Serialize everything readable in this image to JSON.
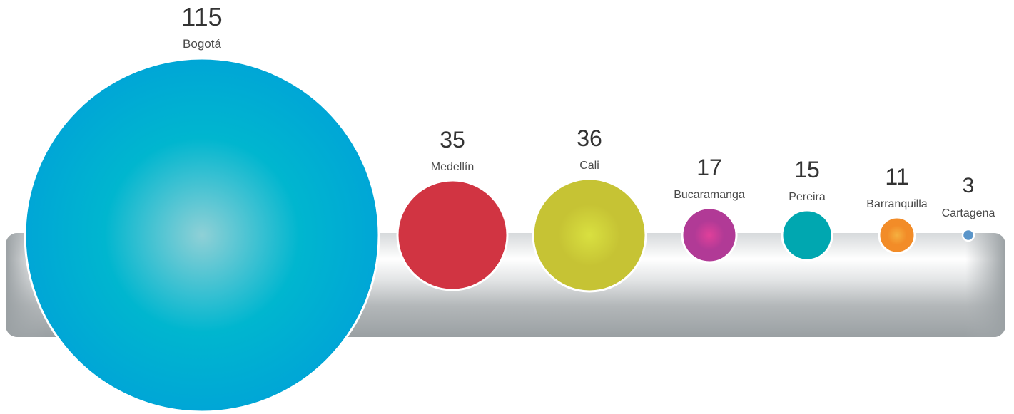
{
  "chart_data": {
    "type": "bubble",
    "title": "",
    "categories": [
      "Bogotá",
      "Medellín",
      "Cali",
      "Bucaramanga",
      "Pereira",
      "Barranquilla",
      "Cartagena"
    ],
    "values": [
      115,
      35,
      36,
      17,
      15,
      11,
      3
    ],
    "colors": [
      "#00a6d6",
      "#d13442",
      "#c6c334",
      "#b13a96",
      "#00a7b0",
      "#f28c28",
      "#5a95c9"
    ],
    "highlight_colors": [
      "#8fd0d6",
      "#d13442",
      "#d9e040",
      "#e0409a",
      "#00a7b0",
      "#f5b040",
      "#5a95c9"
    ],
    "bar_color": "#9aa0a3",
    "legend": "none",
    "grid": false
  }
}
